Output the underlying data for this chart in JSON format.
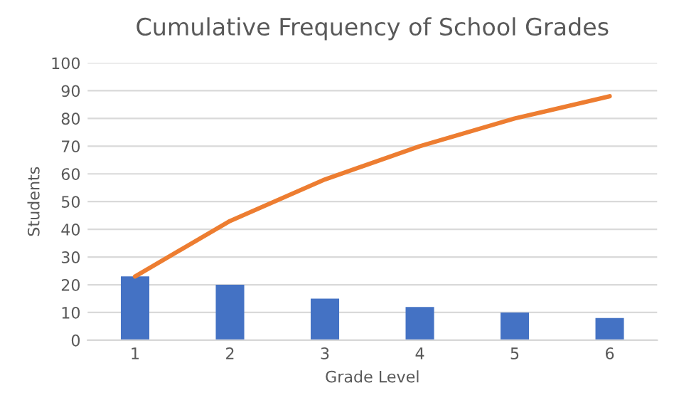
{
  "chart_data": {
    "type": "bar",
    "title": "Cumulative Frequency of School Grades",
    "xlabel": "Grade Level",
    "ylabel": "Students",
    "categories": [
      "1",
      "2",
      "3",
      "4",
      "5",
      "6"
    ],
    "series": [
      {
        "color": "#4472c4",
        "values": [
          23,
          20,
          15,
          12,
          10,
          8
        ]
      },
      {
        "type": "line",
        "color": "#ed7d31",
        "values": [
          23,
          43,
          58,
          70,
          80,
          88
        ]
      }
    ],
    "ylim": [
      0,
      100
    ],
    "yticks": [
      0,
      10,
      20,
      30,
      40,
      50,
      60,
      70,
      80,
      90,
      100
    ],
    "grid": "y"
  }
}
